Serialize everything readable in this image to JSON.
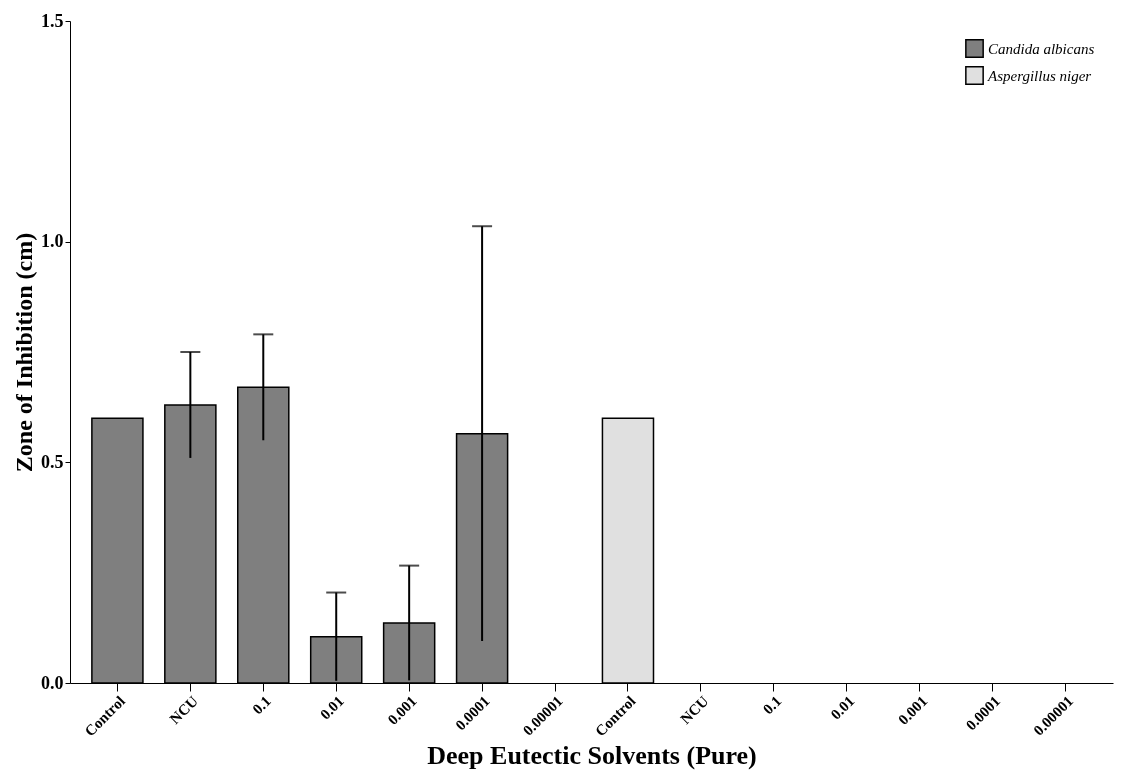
{
  "chart_data": {
    "type": "bar",
    "xlabel": "Deep Eutectic Solvents (Pure)",
    "ylabel": "Zone of Inhibition (cm)",
    "categories": [
      "Control",
      "NCU",
      "0.1",
      "0.01",
      "0.001",
      "0.0001",
      "0.00001",
      "Control",
      "NCU",
      "0.1",
      "0.01",
      "0.001",
      "0.0001",
      "0.00001"
    ],
    "series": [
      {
        "name": "Candida albicans",
        "color": "#7f7f7f",
        "values": [
          0.6,
          0.63,
          0.67,
          0.105,
          0.136,
          0.565,
          null,
          null,
          null,
          null,
          null,
          null,
          null,
          null
        ],
        "errors": [
          null,
          0.12,
          0.12,
          0.1,
          0.13,
          0.47,
          null,
          null,
          null,
          null,
          null,
          null,
          null,
          null
        ]
      },
      {
        "name": "Aspergillus niger",
        "color": "#e0e0e0",
        "values": [
          null,
          null,
          null,
          null,
          null,
          null,
          null,
          0.6,
          null,
          null,
          null,
          null,
          null,
          null
        ]
      }
    ],
    "ylim": [
      0,
      1.5
    ],
    "yticks": [
      {
        "value": 0,
        "label": "0.0"
      },
      0.5,
      {
        "value": 1,
        "label": "1.0"
      },
      1.5
    ],
    "grid": false,
    "legend": "top right"
  }
}
